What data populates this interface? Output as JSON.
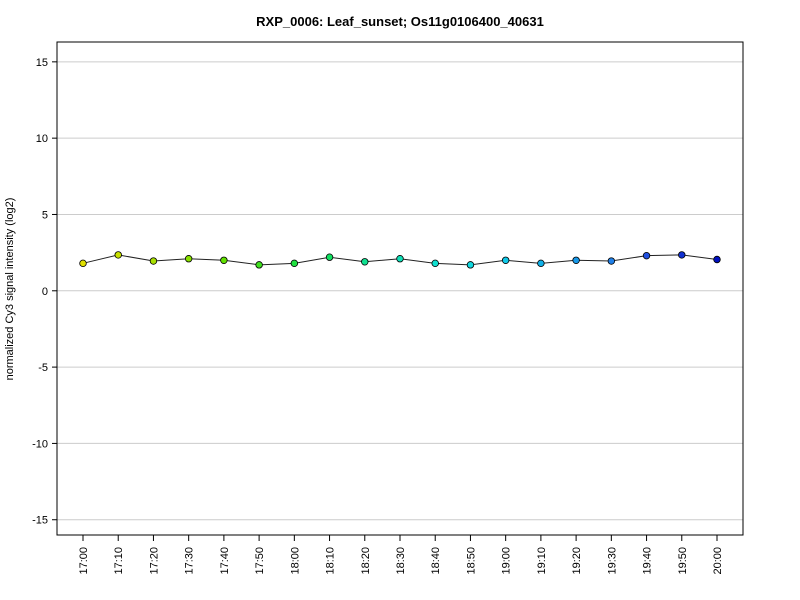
{
  "chart_data": {
    "type": "line",
    "title": "RXP_0006: Leaf_sunset; Os11g0106400_40631",
    "xlabel": "",
    "ylabel": "normalized Cy3 signal intensity (log2)",
    "ylim": [
      -16,
      16.3
    ],
    "yticks": [
      -15,
      -10,
      -5,
      0,
      5,
      10,
      15
    ],
    "grid": true,
    "categories": [
      "17:00",
      "17:10",
      "17:20",
      "17:30",
      "17:40",
      "17:50",
      "18:00",
      "18:10",
      "18:20",
      "18:30",
      "18:40",
      "18:50",
      "19:00",
      "19:10",
      "19:20",
      "19:30",
      "19:40",
      "19:50",
      "20:00"
    ],
    "values": [
      1.8,
      2.35,
      1.95,
      2.1,
      2.0,
      1.7,
      1.8,
      2.2,
      1.9,
      2.1,
      1.8,
      1.7,
      2.0,
      1.8,
      2.0,
      1.95,
      2.3,
      2.35,
      2.05
    ],
    "point_colors": [
      "#e0e000",
      "#c8e000",
      "#a8e000",
      "#88e000",
      "#60e000",
      "#40e020",
      "#20e040",
      "#10e060",
      "#10e090",
      "#10e0b8",
      "#10e0d0",
      "#10d8e0",
      "#10c8e8",
      "#10b0e8",
      "#1898e8",
      "#2080e8",
      "#2050e0",
      "#1030d0",
      "#0010c0"
    ]
  }
}
